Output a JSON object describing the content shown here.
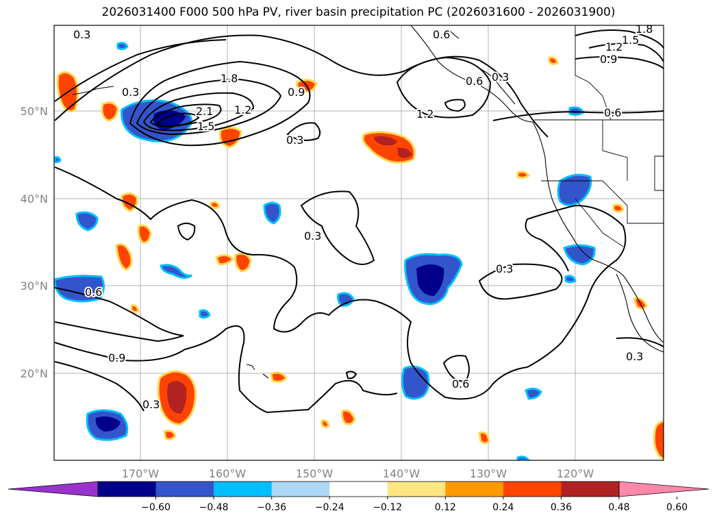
{
  "title": "2026031400 F000 500 hPa PV, river basin precipitation PC (2026031600 - 2026031900)",
  "lat_labels": [
    "50°N",
    "40°N",
    "30°N",
    "20°N"
  ],
  "lon_labels": [
    "170°W",
    "160°W",
    "150°W",
    "140°W",
    "130°W",
    "120°W"
  ],
  "contour_labels": [
    "0.3",
    "0.3",
    "1.8",
    "0.9",
    "2.1",
    "1.5",
    "1.2",
    "0.3",
    "0.6",
    "1.2",
    "0.3",
    "0.6",
    "0.3",
    "0.6",
    "0.3",
    "0.9",
    "0.3",
    "0.6",
    "1.5",
    "1.8",
    "1.2",
    "0.9",
    "0.6",
    "0.3"
  ],
  "colorbar": {
    "ticks": [
      "−0.60",
      "−0.48",
      "−0.36",
      "−0.24",
      "−0.12",
      "0.12",
      "0.24",
      "0.36",
      "0.48",
      "0.60"
    ],
    "colors": [
      "#9933cc",
      "#00008b",
      "#3355cc",
      "#00bfff",
      "#add8f5",
      "#ffffff",
      "#ffe680",
      "#ff9900",
      "#ff4400",
      "#b22222",
      "#ff88aa"
    ]
  }
}
